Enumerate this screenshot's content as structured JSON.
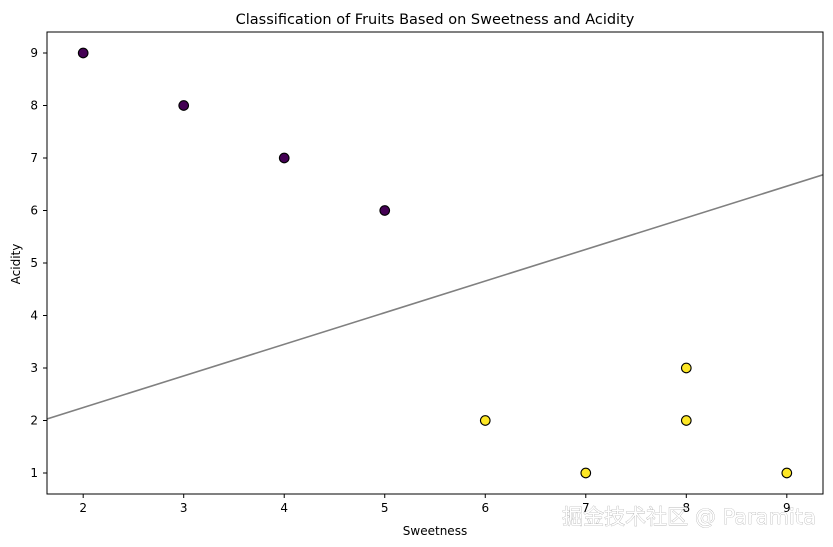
{
  "chart_data": {
    "type": "scatter",
    "title": "Classification of Fruits Based on Sweetness and Acidity",
    "xlabel": "Sweetness",
    "ylabel": "Acidity",
    "xlim": [
      1.64,
      9.36
    ],
    "ylim": [
      0.6,
      9.4
    ],
    "xticks": [
      "2",
      "3",
      "4",
      "5",
      "6",
      "7",
      "8",
      "9"
    ],
    "yticks": [
      "1",
      "2",
      "3",
      "4",
      "5",
      "6",
      "7",
      "8",
      "9"
    ],
    "grid": false,
    "legend": "none",
    "series": [
      {
        "color": "#440154",
        "points": [
          {
            "x": 2,
            "y": 9
          },
          {
            "x": 3,
            "y": 8
          },
          {
            "x": 4,
            "y": 7
          },
          {
            "x": 5,
            "y": 6
          }
        ]
      },
      {
        "color": "#fde725",
        "points": [
          {
            "x": 6,
            "y": 2
          },
          {
            "x": 7,
            "y": 1
          },
          {
            "x": 8,
            "y": 3
          },
          {
            "x": 8,
            "y": 2
          },
          {
            "x": 9,
            "y": 1
          }
        ]
      }
    ],
    "decision_boundary": {
      "color": "#808080",
      "points": [
        {
          "x": 1.64,
          "y": 2.03
        },
        {
          "x": 9.36,
          "y": 6.68
        }
      ]
    },
    "marker_edge_color": "#000000"
  },
  "watermark": "掘金技术社区 @ Paramita"
}
